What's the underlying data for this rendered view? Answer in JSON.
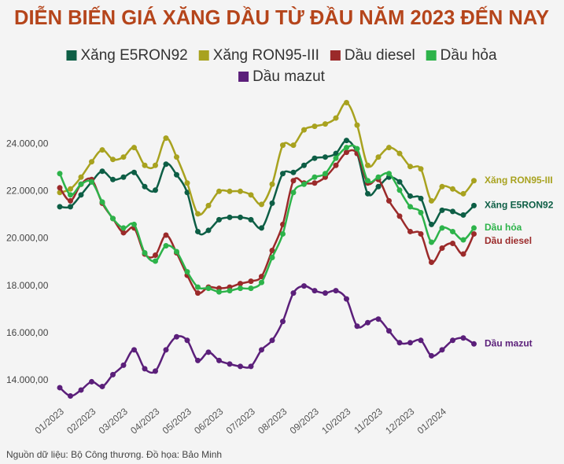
{
  "chart_data": {
    "type": "line",
    "title": "DIỄN BIẾN GIÁ XĂNG DẦU TỪ ĐẦU NĂM 2023 ĐẾN NAY",
    "source": "Nguồn dữ liệu: Bộ Công thương. Đồ họa: Bảo Minh",
    "categories": [
      "01/2023",
      null,
      null,
      "02/2023",
      null,
      null,
      "03/2023",
      null,
      null,
      "04/2023",
      null,
      null,
      "05/2023",
      null,
      null,
      "06/2023",
      null,
      null,
      "07/2023",
      null,
      null,
      "08/2023",
      null,
      null,
      "09/2023",
      null,
      null,
      "10/2023",
      null,
      null,
      "11/2023",
      null,
      null,
      "12/2023",
      null,
      null,
      "01/2024",
      null,
      null,
      null
    ],
    "ylim": [
      13000,
      26000
    ],
    "yticks": [
      {
        "value": 14000,
        "label": "14.000,00"
      },
      {
        "value": 16000,
        "label": "16.000,00"
      },
      {
        "value": 18000,
        "label": "18.000,00"
      },
      {
        "value": 20000,
        "label": "20.000,00"
      },
      {
        "value": 22000,
        "label": "22.000,00"
      },
      {
        "value": 24000,
        "label": "24.000,00"
      }
    ],
    "grid": false,
    "series": [
      {
        "name": "Xăng E5RON92",
        "color": "#0d5e45",
        "values": [
          21350,
          21350,
          21850,
          22400,
          22850,
          22500,
          22600,
          22800,
          22200,
          22050,
          23150,
          22700,
          21950,
          20300,
          20350,
          20800,
          20900,
          20900,
          20800,
          20450,
          21500,
          22750,
          22800,
          23100,
          23400,
          23450,
          23600,
          24150,
          23600,
          21900,
          22200,
          22600,
          22400,
          21800,
          21700,
          20600,
          21200,
          21150,
          21000,
          21400
        ]
      },
      {
        "name": "Xăng RON95-III",
        "color": "#a8a21f",
        "values": [
          21950,
          22100,
          22600,
          23250,
          23750,
          23350,
          23450,
          23850,
          23100,
          23100,
          24250,
          23450,
          22350,
          21050,
          21400,
          22000,
          22000,
          22000,
          21850,
          21450,
          22300,
          23950,
          23950,
          24600,
          24750,
          24850,
          25100,
          25750,
          24800,
          23100,
          23450,
          23850,
          23600,
          23050,
          22950,
          21600,
          22200,
          22100,
          21900,
          22450
        ]
      },
      {
        "name": "Dầu diesel",
        "color": "#9b2a2a",
        "values": [
          22150,
          21600,
          22300,
          22500,
          21500,
          20850,
          20250,
          20450,
          19350,
          19300,
          20150,
          19400,
          18450,
          17700,
          17950,
          17900,
          17950,
          18100,
          18200,
          18400,
          19500,
          20600,
          22450,
          22350,
          22350,
          22600,
          23100,
          23650,
          23600,
          22350,
          22500,
          21600,
          20950,
          20300,
          20200,
          19000,
          19600,
          19800,
          19350,
          20200
        ]
      },
      {
        "name": "Dầu hỏa",
        "color": "#2db34a",
        "values": [
          22750,
          21850,
          22300,
          22400,
          21550,
          20850,
          20450,
          20600,
          19400,
          19050,
          19700,
          19450,
          18600,
          17950,
          17900,
          17750,
          17800,
          17900,
          17900,
          18150,
          19200,
          20200,
          21950,
          22300,
          22600,
          22750,
          23400,
          23850,
          23800,
          22450,
          22600,
          22750,
          22050,
          21350,
          21100,
          19850,
          20450,
          20300,
          19950,
          20450
        ]
      },
      {
        "name": "Dầu mazut",
        "color": "#5b1f7a",
        "values": [
          13700,
          13350,
          13600,
          13950,
          13750,
          14250,
          14650,
          15300,
          14500,
          14400,
          15300,
          15850,
          15700,
          14850,
          15200,
          14850,
          14700,
          14600,
          14600,
          15300,
          15700,
          16500,
          17700,
          18000,
          17800,
          17700,
          17800,
          17450,
          16300,
          16450,
          16600,
          16100,
          15600,
          15600,
          15700,
          15050,
          15300,
          15700,
          15800,
          15550
        ]
      }
    ]
  }
}
